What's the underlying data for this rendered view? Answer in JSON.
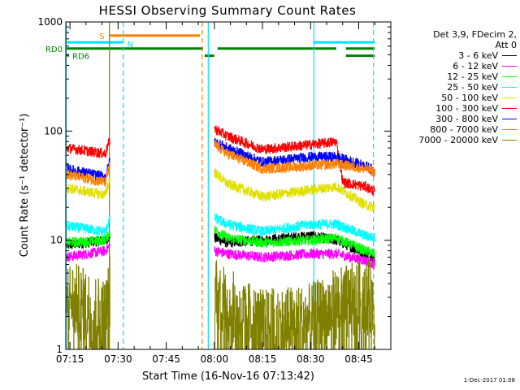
{
  "chart_data": {
    "type": "line",
    "title": "HESSI Observing Summary Count Rates",
    "xlabel": "Start Time (16-Nov-16 07:13:42)",
    "ylabel": "Count Rate (s⁻¹ detector⁻¹)",
    "y_scale": "log",
    "ylim": [
      1,
      1000
    ],
    "y_ticks": [
      1,
      10,
      100,
      1000
    ],
    "y_tick_labels": [
      "1",
      "10",
      "100",
      "1000"
    ],
    "xlim_min": [
      13.7,
      115.0
    ],
    "x_ticks_min": [
      15,
      30,
      45,
      60,
      75,
      90,
      105
    ],
    "x_tick_labels": [
      "07:15",
      "07:30",
      "07:45",
      "08:00",
      "08:15",
      "08:30",
      "08:45"
    ],
    "grid": false,
    "legend_position": "right",
    "legend_header": [
      "Det 3,9, FDecim 2,",
      "Att 0"
    ],
    "series": [
      {
        "name": "3 - 6 keV",
        "color": "#000000",
        "segments": [
          [
            [
              14.0,
              9.0
            ],
            [
              26.0,
              10.0
            ],
            [
              27.5,
              11.0
            ]
          ],
          [
            [
              60.0,
              10.5
            ],
            [
              64.0,
              9.5
            ],
            [
              75.0,
              10.0
            ],
            [
              90.0,
              11.0
            ],
            [
              98.0,
              10.0
            ],
            [
              107.0,
              7.5
            ],
            [
              110.0,
              7.0
            ]
          ]
        ]
      },
      {
        "name": "6 - 12 keV",
        "color": "#ff00ff",
        "segments": [
          [
            [
              14.0,
              7.0
            ],
            [
              26.0,
              8.0
            ],
            [
              27.5,
              9.0
            ]
          ],
          [
            [
              60.0,
              8.0
            ],
            [
              64.0,
              7.5
            ],
            [
              75.0,
              7.0
            ],
            [
              90.0,
              7.5
            ],
            [
              98.0,
              7.5
            ],
            [
              107.0,
              6.5
            ],
            [
              110.0,
              6.0
            ]
          ]
        ]
      },
      {
        "name": "12 - 25 keV",
        "color": "#00ff00",
        "segments": [
          [
            [
              14.0,
              9.5
            ],
            [
              26.0,
              10.0
            ],
            [
              27.5,
              12.0
            ]
          ],
          [
            [
              60.0,
              12.5
            ],
            [
              64.0,
              10.5
            ],
            [
              75.0,
              9.5
            ],
            [
              90.0,
              10.0
            ],
            [
              98.0,
              10.5
            ],
            [
              107.0,
              8.0
            ],
            [
              110.0,
              7.5
            ]
          ]
        ]
      },
      {
        "name": "25 - 50 keV",
        "color": "#00ffff",
        "segments": [
          [
            [
              14.0,
              13.5
            ],
            [
              26.0,
              12.0
            ],
            [
              27.5,
              16.0
            ]
          ],
          [
            [
              60.0,
              16.0
            ],
            [
              64.0,
              14.0
            ],
            [
              75.0,
              12.0
            ],
            [
              90.0,
              14.0
            ],
            [
              98.0,
              14.0
            ],
            [
              107.0,
              11.0
            ],
            [
              110.0,
              10.5
            ]
          ]
        ]
      },
      {
        "name": "50 - 100 keV",
        "color": "#e0e000",
        "segments": [
          [
            [
              14.0,
              30.0
            ],
            [
              26.0,
              26.0
            ],
            [
              27.5,
              38.0
            ]
          ],
          [
            [
              60.0,
              42.0
            ],
            [
              64.0,
              33.0
            ],
            [
              75.0,
              25.0
            ],
            [
              90.0,
              29.0
            ],
            [
              98.0,
              31.0
            ],
            [
              107.0,
              21.0
            ],
            [
              110.0,
              20.0
            ]
          ]
        ]
      },
      {
        "name": "100 - 300 keV",
        "color": "#ff0000",
        "segments": [
          [
            [
              14.0,
              70.0
            ],
            [
              26.0,
              62.0
            ],
            [
              27.5,
              85.0
            ]
          ],
          [
            [
              60.0,
              105.0
            ],
            [
              64.0,
              90.0
            ],
            [
              75.0,
              68.0
            ],
            [
              90.0,
              75.0
            ],
            [
              98.0,
              80.0
            ],
            [
              100.0,
              34.0
            ],
            [
              107.0,
              31.0
            ],
            [
              110.0,
              28.0
            ]
          ]
        ]
      },
      {
        "name": "300 - 800 keV",
        "color": "#0000ff",
        "segments": [
          [
            [
              14.0,
              45.0
            ],
            [
              26.0,
              38.0
            ],
            [
              27.5,
              55.0
            ]
          ],
          [
            [
              60.0,
              80.0
            ],
            [
              64.0,
              70.0
            ],
            [
              75.0,
              52.0
            ],
            [
              90.0,
              58.0
            ],
            [
              98.0,
              58.0
            ],
            [
              107.0,
              48.0
            ],
            [
              110.0,
              43.0
            ]
          ]
        ]
      },
      {
        "name": "800 - 7000 keV",
        "color": "#ff8000",
        "segments": [
          [
            [
              14.0,
              40.0
            ],
            [
              26.0,
              34.0
            ],
            [
              27.5,
              50.0
            ]
          ],
          [
            [
              60.0,
              75.0
            ],
            [
              64.0,
              62.0
            ],
            [
              75.0,
              45.0
            ],
            [
              90.0,
              48.0
            ],
            [
              98.0,
              50.0
            ],
            [
              107.0,
              45.0
            ],
            [
              110.0,
              42.0
            ]
          ]
        ]
      },
      {
        "name": "7000 - 20000 keV",
        "color": "#808000",
        "segments": [
          [
            [
              14.0,
              3.0
            ],
            [
              26.0,
              2.0
            ],
            [
              27.5,
              3.5
            ]
          ],
          [
            [
              60.0,
              4.0
            ],
            [
              64.0,
              2.5
            ],
            [
              75.0,
              1.6
            ],
            [
              90.0,
              1.8
            ],
            [
              98.0,
              2.5
            ],
            [
              107.0,
              3.0
            ],
            [
              110.0,
              2.8
            ]
          ]
        ]
      }
    ],
    "state_bars": [
      {
        "label": "S",
        "color": "#ff8000",
        "y": 750,
        "spans": [
          [
            27.5,
            55.5
          ]
        ]
      },
      {
        "label": "N",
        "color": "#00e0ff",
        "y": 650,
        "spans": [
          [
            14.0,
            31.5
          ],
          [
            91.0,
            110.0
          ]
        ]
      },
      {
        "label": "RD0",
        "color": "#008000",
        "y": 570,
        "spans": [
          [
            14.0,
            56.5
          ],
          [
            61.0,
            98.0
          ],
          [
            101.0,
            110.0
          ]
        ]
      },
      {
        "label": "RD6",
        "color": "#008000",
        "y": 490,
        "spans": [
          [
            57.0,
            60.0
          ],
          [
            101.0,
            110.0
          ]
        ]
      }
    ],
    "vertical_lines": [
      {
        "x": 13.8,
        "color": "#00e0ff",
        "style": "solid"
      },
      {
        "x": 27.3,
        "color": "#808000",
        "style": "solid"
      },
      {
        "x": 31.6,
        "color": "#00e0ff",
        "style": "dashed"
      },
      {
        "x": 56.2,
        "color": "#ff8000",
        "style": "dashed"
      },
      {
        "x": 58.1,
        "color": "#00e0ff",
        "style": "solid"
      },
      {
        "x": 91.0,
        "color": "#00e0ff",
        "style": "solid"
      },
      {
        "x": 109.6,
        "color": "#00e0ff",
        "style": "dashed"
      }
    ]
  },
  "footer": {
    "timestamp": "1-Dec-2017 01:08"
  }
}
